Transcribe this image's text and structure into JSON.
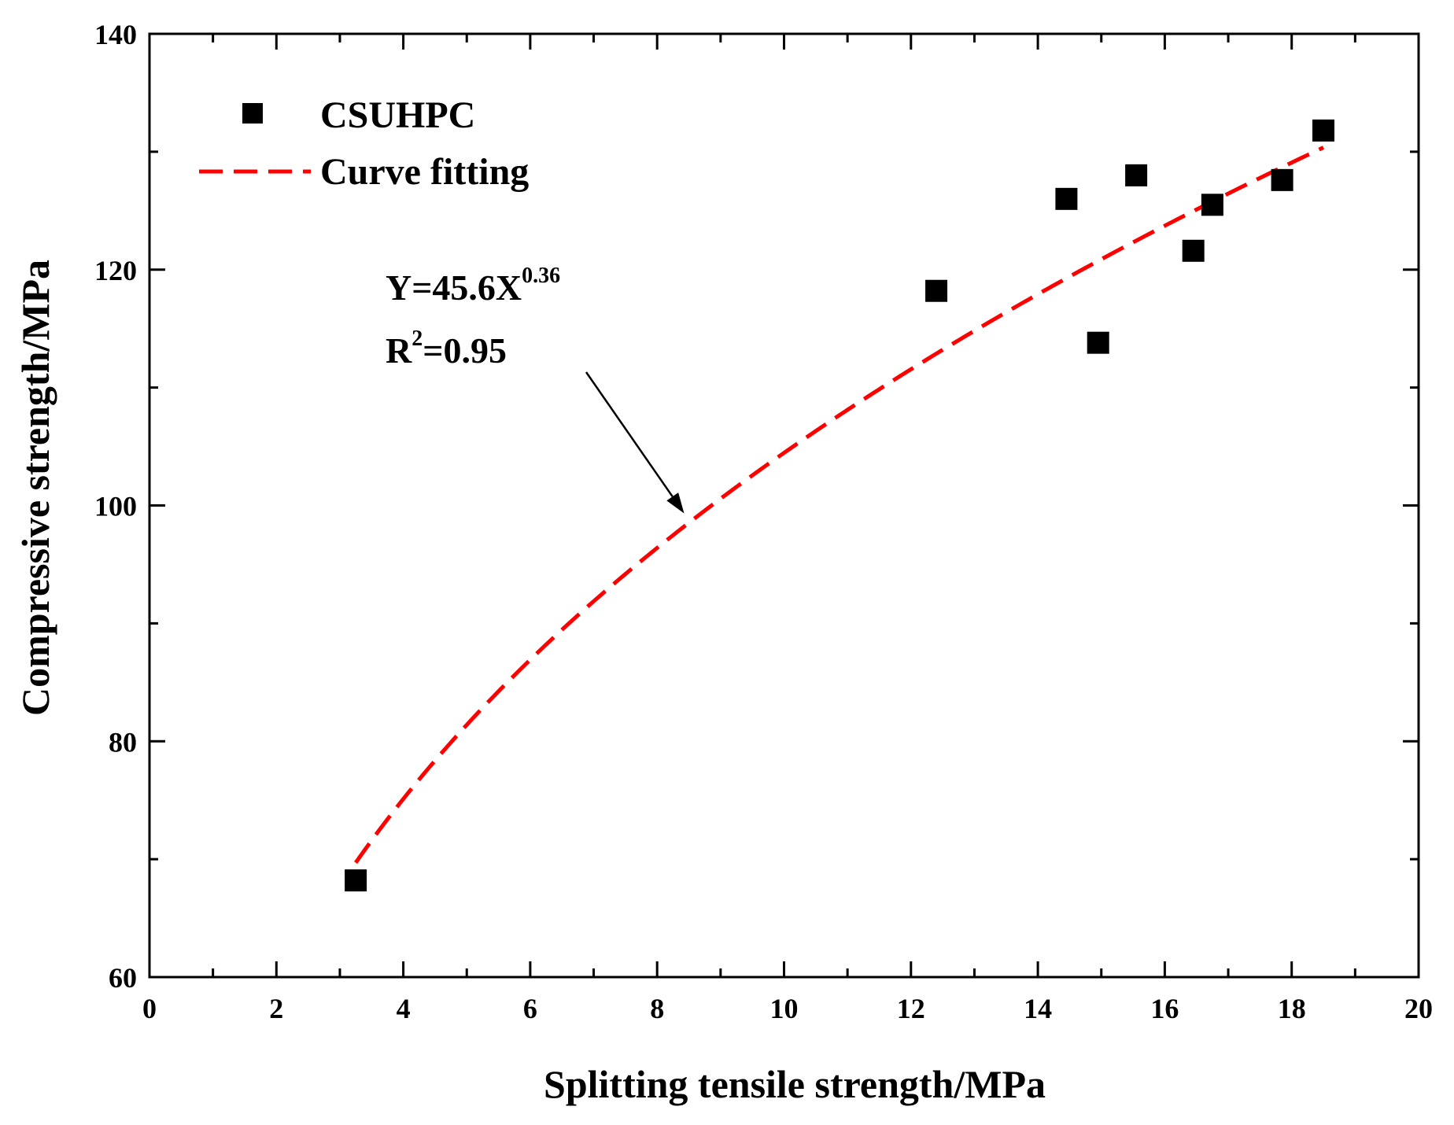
{
  "chart_data": {
    "type": "scatter",
    "title": "",
    "xlabel": "Splitting tensile strength/MPa",
    "ylabel": "Compressive strength/MPa",
    "xlim": [
      0,
      20
    ],
    "ylim": [
      60,
      140
    ],
    "xticks": [
      0,
      2,
      4,
      6,
      8,
      10,
      12,
      14,
      16,
      18,
      20
    ],
    "yticks": [
      60,
      80,
      100,
      120,
      140
    ],
    "grid": false,
    "legend_position": "top-left",
    "series": [
      {
        "name": "CSUHPC",
        "kind": "scatter",
        "marker": "square",
        "color": "#000000",
        "x": [
          3.25,
          12.4,
          14.45,
          14.95,
          15.55,
          16.45,
          16.75,
          17.85,
          18.5
        ],
        "y": [
          68.2,
          118.2,
          126.0,
          113.8,
          128.0,
          121.6,
          125.5,
          127.6,
          131.8
        ]
      },
      {
        "name": "Curve fitting",
        "kind": "line",
        "style": "dashed",
        "color": "#ff0000",
        "equation": {
          "a": 45.6,
          "b": 0.36
        },
        "x_range": [
          3.25,
          18.5
        ]
      }
    ],
    "annotation": {
      "eq_prefix": "Y=45.6X",
      "eq_exp": "0.36",
      "r2_prefix": "R",
      "r2_exp": "2",
      "r2_suffix": "=0.95",
      "arrow_target_x": 8.5
    }
  }
}
